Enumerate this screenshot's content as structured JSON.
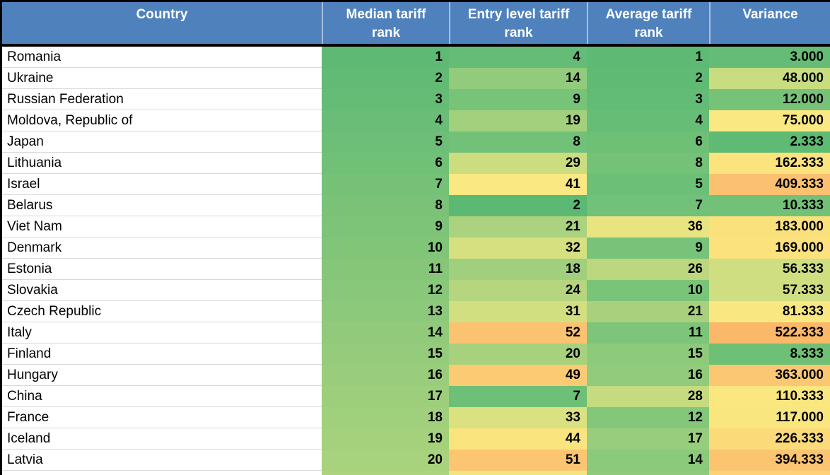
{
  "table": {
    "columns": [
      {
        "label": "Country"
      },
      {
        "label": "Median tariff rank"
      },
      {
        "label": "Entry level tariff rank"
      },
      {
        "label": "Average tariff rank"
      },
      {
        "label": "Variance"
      }
    ],
    "cell_keys": [
      "median",
      "entry",
      "average",
      "variance"
    ],
    "colors": {
      "header_bg": "#4F81BD",
      "header_text": "#FFFFFF",
      "header_separator": "#A9BEDC",
      "frame": "#000000",
      "country_gridline": "#D9D9D9",
      "scale_green": "#5BB973",
      "scale_yellow": "#FAE983",
      "scale_orange": "#FBB869"
    },
    "rows": [
      {
        "country": "Romania",
        "median": "1",
        "entry": "4",
        "average": "1",
        "variance": "3.000",
        "cell_colors": [
          "#5DB974",
          "#64BC76",
          "#5CBA74",
          "#64BC76"
        ]
      },
      {
        "country": "Ukraine",
        "median": "2",
        "entry": "14",
        "average": "2",
        "variance": "48.000",
        "cell_colors": [
          "#61BB75",
          "#92CB7B",
          "#5FBB74",
          "#C8DC80"
        ]
      },
      {
        "country": "Russian Federation",
        "median": "3",
        "entry": "9",
        "average": "3",
        "variance": "12.000",
        "cell_colors": [
          "#65BC75",
          "#77C378",
          "#62BC75",
          "#76C378"
        ]
      },
      {
        "country": "Moldova, Republic of",
        "median": "4",
        "entry": "19",
        "average": "4",
        "variance": "75.000",
        "cell_colors": [
          "#69BD76",
          "#A3D07D",
          "#65BD76",
          "#FAE982"
        ]
      },
      {
        "country": "Japan",
        "median": "5",
        "entry": "8",
        "average": "6",
        "variance": "2.333",
        "cell_colors": [
          "#6DBE76",
          "#72C178",
          "#6EC077",
          "#5FBA73"
        ]
      },
      {
        "country": "Lithuania",
        "median": "6",
        "entry": "29",
        "average": "8",
        "variance": "162.333",
        "cell_colors": [
          "#71C077",
          "#CCDD80",
          "#74C278",
          "#FBE37D"
        ]
      },
      {
        "country": "Israel",
        "median": "7",
        "entry": "41",
        "average": "5",
        "variance": "409.333",
        "cell_colors": [
          "#75C177",
          "#FAE983",
          "#6BBF77",
          "#FBC170"
        ]
      },
      {
        "country": "Belarus",
        "median": "8",
        "entry": "2",
        "average": "7",
        "variance": "10.333",
        "cell_colors": [
          "#79C278",
          "#5BB973",
          "#71C178",
          "#72C178"
        ]
      },
      {
        "country": "Viet Nam",
        "median": "9",
        "entry": "21",
        "average": "36",
        "variance": "183.000",
        "cell_colors": [
          "#7DC478",
          "#ABD27E",
          "#E8E580",
          "#FBE17C"
        ]
      },
      {
        "country": "Denmark",
        "median": "10",
        "entry": "32",
        "average": "9",
        "variance": "169.000",
        "cell_colors": [
          "#81C579",
          "#D6E081",
          "#77C379",
          "#FBE27D"
        ]
      },
      {
        "country": "Estonia",
        "median": "11",
        "entry": "18",
        "average": "26",
        "variance": "56.333",
        "cell_colors": [
          "#85C679",
          "#A0CF7D",
          "#BDD77F",
          "#CEDE81"
        ]
      },
      {
        "country": "Slovakia",
        "median": "12",
        "entry": "24",
        "average": "10",
        "variance": "57.333",
        "cell_colors": [
          "#89C87A",
          "#B5D57E",
          "#7AC479",
          "#CFDE81"
        ]
      },
      {
        "country": "Czech Republic",
        "median": "13",
        "entry": "31",
        "average": "21",
        "variance": "81.333",
        "cell_colors": [
          "#8DC97A",
          "#D2DF80",
          "#A9D17D",
          "#F9E881"
        ]
      },
      {
        "country": "Italy",
        "median": "14",
        "entry": "52",
        "average": "11",
        "variance": "522.333",
        "cell_colors": [
          "#91CA7B",
          "#FBC271",
          "#7DC57A",
          "#FBB869"
        ]
      },
      {
        "country": "Finland",
        "median": "15",
        "entry": "20",
        "average": "15",
        "variance": "8.333",
        "cell_colors": [
          "#95CC7B",
          "#A7D17D",
          "#8ECA7B",
          "#6FC077"
        ]
      },
      {
        "country": "Hungary",
        "median": "16",
        "entry": "49",
        "average": "16",
        "variance": "363.000",
        "cell_colors": [
          "#99CD7C",
          "#FBCB73",
          "#91CB7B",
          "#FBC773"
        ]
      },
      {
        "country": "China",
        "median": "17",
        "entry": "7",
        "average": "28",
        "variance": "110.333",
        "cell_colors": [
          "#9DCE7C",
          "#6FC077",
          "#C6DA7F",
          "#FAE77F"
        ]
      },
      {
        "country": "France",
        "median": "18",
        "entry": "33",
        "average": "12",
        "variance": "117.000",
        "cell_colors": [
          "#A1D07D",
          "#DAE181",
          "#83C77A",
          "#FAE67E"
        ]
      },
      {
        "country": "Iceland",
        "median": "19",
        "entry": "44",
        "average": "17",
        "variance": "226.333",
        "cell_colors": [
          "#A5D17D",
          "#FAE47D",
          "#97CD7C",
          "#FBDA79"
        ]
      },
      {
        "country": "Latvia",
        "median": "20",
        "entry": "51",
        "average": "14",
        "variance": "394.333",
        "cell_colors": [
          "#A9D27E",
          "#FBC572",
          "#8BC97B",
          "#FBC471"
        ]
      }
    ],
    "partial_row": {
      "country": "",
      "cell_colors": [
        "#ADD37E",
        "#F0E57F",
        "#90CB7B",
        "#FBD276"
      ]
    }
  }
}
